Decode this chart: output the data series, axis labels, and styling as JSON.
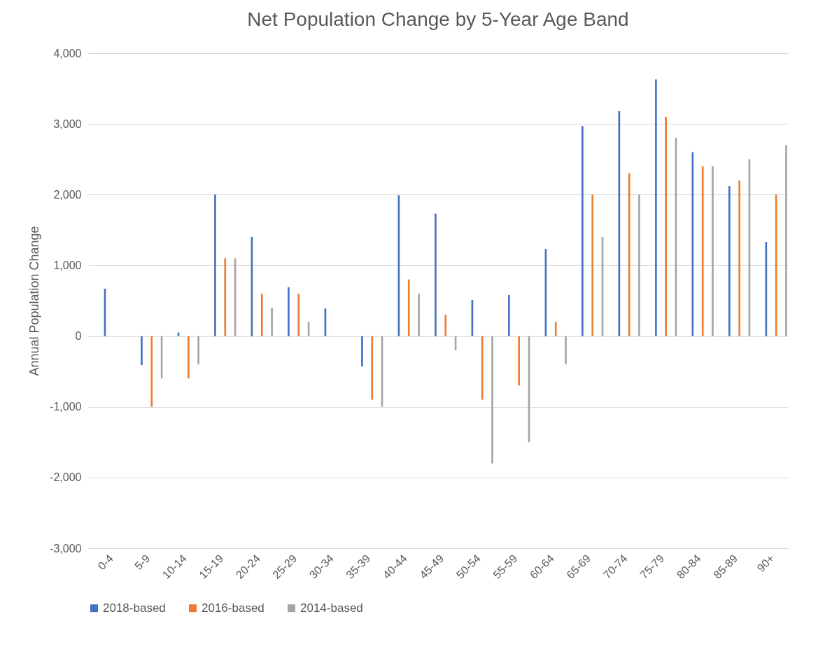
{
  "chart_data": {
    "type": "bar",
    "title": "Net Population Change by 5-Year Age Band",
    "ylabel": "Annual Population Change",
    "categories": [
      "0-4",
      "5-9",
      "10-14",
      "15-19",
      "20-24",
      "25-29",
      "30-34",
      "35-39",
      "40-44",
      "45-49",
      "50-54",
      "55-59",
      "60-64",
      "65-69",
      "70-74",
      "75-79",
      "80-84",
      "85-89",
      "90+"
    ],
    "series": [
      {
        "name": "2018-based",
        "color": "#4472c4",
        "values": [
          670,
          -410,
          50,
          2000,
          1400,
          690,
          390,
          -430,
          1990,
          1730,
          510,
          580,
          1230,
          2970,
          3180,
          3630,
          2600,
          2120,
          1330
        ]
      },
      {
        "name": "2016-based",
        "color": "#ed7d31",
        "values": [
          0,
          -1000,
          -600,
          1100,
          600,
          600,
          0,
          -900,
          800,
          300,
          -900,
          -700,
          200,
          2000,
          2300,
          3100,
          2400,
          2200,
          2000
        ]
      },
      {
        "name": "2014-based",
        "color": "#a5a5a5",
        "values": [
          0,
          -600,
          -400,
          1100,
          400,
          200,
          0,
          -1000,
          600,
          -200,
          -1800,
          -1500,
          -400,
          1400,
          2000,
          2800,
          2400,
          2500,
          2700
        ]
      }
    ],
    "ylim": [
      -3000,
      4000
    ],
    "yticks": [
      {
        "value": -3000,
        "label": "-3,000"
      },
      {
        "value": -2000,
        "label": "-2,000"
      },
      {
        "value": -1000,
        "label": "-1,000"
      },
      0,
      {
        "value": 1000,
        "label": "1,000"
      },
      {
        "value": 2000,
        "label": "2,000"
      },
      {
        "value": 3000,
        "label": "3,000"
      },
      {
        "value": 4000,
        "label": "4,000"
      }
    ],
    "grid": "y",
    "legend": "bottom"
  }
}
